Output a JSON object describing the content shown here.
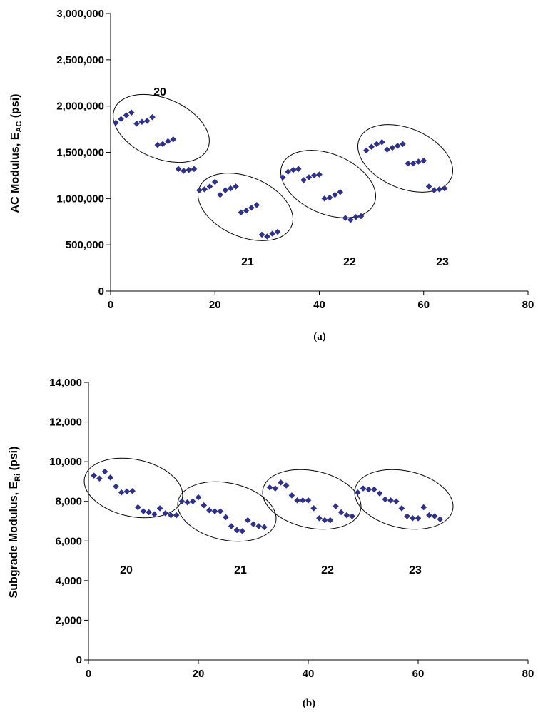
{
  "chart_data": [
    {
      "type": "scatter",
      "caption": "(a)",
      "ylabel": {
        "main": "AC Modulus, E",
        "sub": "AC",
        "suffix": " (psi)"
      },
      "xlim": [
        0,
        80
      ],
      "ylim": [
        0,
        3000000
      ],
      "xticks": [
        0,
        20,
        40,
        60,
        80
      ],
      "yticks": [
        0,
        500000,
        1000000,
        1500000,
        2000000,
        2500000,
        3000000
      ],
      "xtick_labels": [
        "0",
        "20",
        "40",
        "60",
        "80"
      ],
      "ytick_labels": [
        "0",
        "500,000",
        "1,000,000",
        "1,500,000",
        "2,000,000",
        "2,500,000",
        "3,000,000"
      ],
      "grid": false,
      "marker_color": "#2e3192",
      "x": [
        1,
        2,
        3,
        4,
        5,
        6,
        7,
        8,
        9,
        10,
        11,
        12,
        13,
        14,
        15,
        16,
        17,
        18,
        19,
        20,
        21,
        22,
        23,
        24,
        25,
        26,
        27,
        28,
        29,
        30,
        31,
        32,
        33,
        34,
        35,
        36,
        37,
        38,
        39,
        40,
        41,
        42,
        43,
        44,
        45,
        46,
        47,
        48,
        49,
        50,
        51,
        52,
        53,
        54,
        55,
        56,
        57,
        58,
        59,
        60,
        61,
        62,
        63,
        64
      ],
      "y": [
        1820000,
        1860000,
        1900000,
        1930000,
        1810000,
        1830000,
        1840000,
        1880000,
        1580000,
        1590000,
        1620000,
        1640000,
        1320000,
        1300000,
        1310000,
        1320000,
        1090000,
        1100000,
        1130000,
        1180000,
        1040000,
        1090000,
        1110000,
        1130000,
        850000,
        870000,
        900000,
        930000,
        610000,
        590000,
        620000,
        640000,
        1230000,
        1290000,
        1310000,
        1320000,
        1200000,
        1230000,
        1250000,
        1260000,
        1000000,
        1010000,
        1040000,
        1070000,
        790000,
        770000,
        800000,
        810000,
        1520000,
        1560000,
        1590000,
        1610000,
        1530000,
        1550000,
        1570000,
        1590000,
        1380000,
        1380000,
        1400000,
        1410000,
        1130000,
        1090000,
        1100000,
        1110000
      ],
      "groups": [
        {
          "label": "20",
          "x_range": [
            1,
            16
          ]
        },
        {
          "label": "21",
          "x_range": [
            17,
            32
          ]
        },
        {
          "label": "22",
          "x_range": [
            33,
            48
          ]
        },
        {
          "label": "23",
          "x_range": [
            49,
            64
          ]
        }
      ]
    },
    {
      "type": "scatter",
      "caption": "(b)",
      "ylabel": {
        "main": "Subgrade Modulus, E",
        "sub": "Ri",
        "suffix": " (psi)"
      },
      "xlim": [
        0,
        80
      ],
      "ylim": [
        0,
        14000
      ],
      "xticks": [
        0,
        20,
        40,
        60,
        80
      ],
      "yticks": [
        0,
        2000,
        4000,
        6000,
        8000,
        10000,
        12000,
        14000
      ],
      "xtick_labels": [
        "0",
        "20",
        "40",
        "60",
        "80"
      ],
      "ytick_labels": [
        "0",
        "2,000",
        "4,000",
        "6,000",
        "8,000",
        "10,000",
        "12,000",
        "14,000"
      ],
      "grid": false,
      "marker_color": "#2e3192",
      "x": [
        1,
        2,
        3,
        4,
        5,
        6,
        7,
        8,
        9,
        10,
        11,
        12,
        13,
        14,
        15,
        16,
        17,
        18,
        19,
        20,
        21,
        22,
        23,
        24,
        25,
        26,
        27,
        28,
        29,
        30,
        31,
        32,
        33,
        34,
        35,
        36,
        37,
        38,
        39,
        40,
        41,
        42,
        43,
        44,
        45,
        46,
        47,
        48,
        49,
        50,
        51,
        52,
        53,
        54,
        55,
        56,
        57,
        58,
        59,
        60,
        61,
        62,
        63,
        64
      ],
      "y": [
        9300,
        9150,
        9500,
        9200,
        8750,
        8450,
        8500,
        8520,
        7700,
        7500,
        7450,
        7350,
        7650,
        7400,
        7300,
        7300,
        8000,
        7950,
        8000,
        8200,
        7800,
        7550,
        7500,
        7500,
        7200,
        6750,
        6550,
        6500,
        7050,
        6850,
        6750,
        6700,
        8700,
        8650,
        8950,
        8800,
        8300,
        8050,
        8050,
        8050,
        7650,
        7150,
        7050,
        7050,
        7750,
        7450,
        7300,
        7250,
        8450,
        8650,
        8600,
        8600,
        8400,
        8100,
        8050,
        8000,
        7650,
        7250,
        7150,
        7150,
        7700,
        7300,
        7250,
        7100
      ],
      "groups": [
        {
          "label": "20",
          "x_range": [
            1,
            16
          ]
        },
        {
          "label": "21",
          "x_range": [
            17,
            32
          ]
        },
        {
          "label": "22",
          "x_range": [
            33,
            48
          ]
        },
        {
          "label": "23",
          "x_range": [
            49,
            64
          ]
        }
      ]
    }
  ]
}
